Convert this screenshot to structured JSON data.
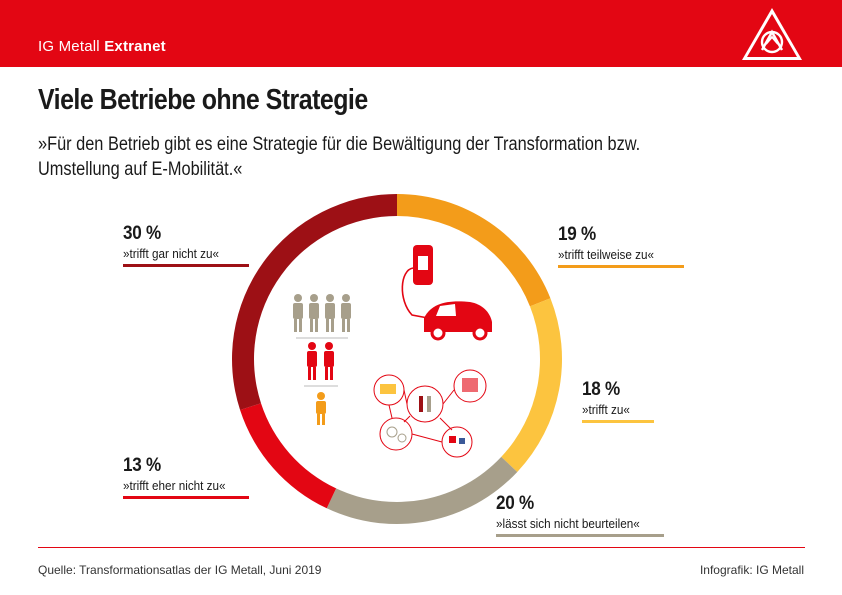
{
  "header": {
    "brand_light": "IG Metall",
    "brand_bold": "Extranet",
    "logo_icon": "ig-metall-logo-icon",
    "color": "#e30613"
  },
  "title": "Viele Betriebe ohne Strategie",
  "subtitle": "»Für den Betrieb gibt es eine Strategie für die Bewältigung der Transformation bzw. Umstellung auf E-Mobilität.«",
  "chart_data": {
    "type": "pie",
    "variant": "donut",
    "categories": [
      "»trifft teilweise zu«",
      "»trifft zu«",
      "»lässt sich nicht beurteilen«",
      "»trifft eher nicht zu«",
      "»trifft gar nicht zu«"
    ],
    "values": [
      19,
      18,
      20,
      13,
      30
    ],
    "labels": [
      "19 %",
      "18 %",
      "20 %",
      "13 %",
      "30 %"
    ],
    "colors": [
      "#f39c1a",
      "#fcc43f",
      "#a79f8b",
      "#e30613",
      "#9d1015"
    ],
    "start": "12 o'clock, clockwise"
  },
  "center_icons": [
    "workers-group-icon",
    "ev-charging-car-icon",
    "network-industry-icon"
  ],
  "footer": {
    "source": "Quelle: Transformationsatlas der IG Metall, Juni 2019",
    "credit": "Infografik: IG Metall"
  }
}
